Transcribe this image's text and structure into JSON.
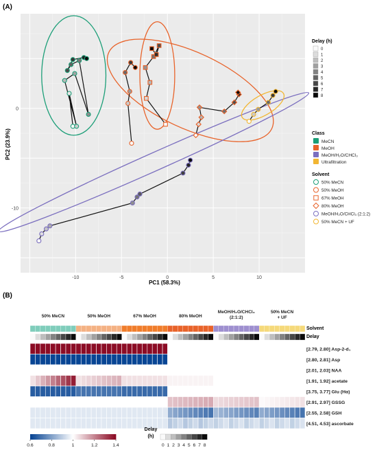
{
  "panel_a": {
    "label": "(A)",
    "x_label": "PC1 (58.3%)",
    "y_label": "PC2 (23.9%)",
    "x_ticks": [
      "-10",
      "-5",
      "0",
      "5",
      "10"
    ],
    "y_ticks": [
      "0",
      "-10"
    ],
    "legend_delay_title": "Delay (h)",
    "legend_delay_items": [
      "0",
      "1",
      "2",
      "3",
      "4",
      "5",
      "6",
      "7",
      "8"
    ],
    "legend_class_title": "Class",
    "legend_class_items": [
      "MeCN",
      "MeOH",
      "MeOH/H₂O/CHCl₃",
      "Ultrafiltration"
    ],
    "legend_solvent_title": "Solvent",
    "legend_solvent_items": [
      "50% MeCN",
      "50% MeOH",
      "67% MeOH",
      "80% MeOH",
      "MeOH/H₂O/CHCl₃ (2:1:2)",
      "50% MeCN + UF"
    ]
  },
  "panel_b": {
    "label": "(B)",
    "group_labels": [
      "50% MeCN",
      "50% MeOH",
      "67% MeOH",
      "80% MeOH",
      "MeOH/H₂O/CHCl₃\n(2:1:2)",
      "50% MeCN\n+ UF"
    ],
    "solvent_row_label": "Solvent",
    "delay_row_label": "Delay",
    "row_labels": [
      "[2.79, 2.80] Asp-2-d₁",
      "[2.80, 2.81] Asp",
      "[2.01, 2.03] NAA",
      "[1.91, 1.92] acetate",
      "[3.75, 3.77] Glu (Hα)",
      "[2.91, 2.97] GSSG",
      "[2.55, 2.58] GSH",
      "[4.51, 4.53] ascorbate"
    ],
    "colorbar_ticks": [
      "0.6",
      "0.8",
      "1",
      "1.2",
      "1.4"
    ],
    "delay_legend_title": "Delay",
    "delay_legend_unit": "(h)",
    "delay_legend_ticks": [
      "0",
      "1",
      "2",
      "3",
      "4",
      "5",
      "6",
      "7",
      "8"
    ]
  },
  "colors": {
    "MeCN": "#1b9e77",
    "MeOH": "#e8632a",
    "MeOH/H2O/CHCl3": "#7b6fbf",
    "Ultrafiltration": "#f2b632",
    "solvent_strip": [
      "#7fcdbb",
      "#f4b183",
      "#f07d2b",
      "#e8632a",
      "#9e8fcf",
      "#f5d97a"
    ]
  },
  "chart_data": [
    {
      "type": "scatter",
      "xlabel": "PC1 (58.3%)",
      "ylabel": "PC2 (23.9%)",
      "xlim": [
        -16,
        15
      ],
      "ylim": [
        -16.5,
        9.5
      ],
      "series": [
        {
          "name": "50% MeCN",
          "class": "MeCN",
          "x": [
            -10.3,
            -10.7,
            -9.9,
            -11.2,
            -10.1,
            -8.6,
            -9.6,
            -10.5,
            -10.9,
            -10.3,
            -9.1,
            -8.8
          ],
          "y": [
            -1.8,
            1.5,
            -1.8,
            2.8,
            3.5,
            -0.6,
            4.8,
            4.4,
            3.8,
            4.9,
            5.1,
            5.0
          ]
        },
        {
          "name": "50% MeOH",
          "class": "MeOH",
          "x": [
            -3.9,
            -4.3,
            -4.1,
            -4.6,
            -4.0,
            -3.5
          ],
          "y": [
            -3.5,
            0.5,
            1.7,
            3.6,
            4.6,
            4.1
          ]
        },
        {
          "name": "67% MeOH",
          "class": "MeOH",
          "x": [
            -0.2,
            -2.3,
            -1.9,
            -2.4,
            -1.5,
            -0.9,
            -1.2,
            -1.7
          ],
          "y": [
            -1.6,
            1.0,
            2.6,
            4.1,
            5.2,
            6.3,
            5.4,
            6.0
          ]
        },
        {
          "name": "80% MeOH",
          "class": "MeOH",
          "x": [
            3.1,
            3.4,
            3.7,
            3.5,
            6.2,
            7.3,
            7.8,
            7.7
          ],
          "y": [
            -2.7,
            -1.6,
            -0.9,
            0.1,
            -0.3,
            0.6,
            1.4,
            1.6
          ]
        },
        {
          "name": "MeOH/H2O/CHCl3 (2:1:2)",
          "class": "MeOH/H2O/CHCl3",
          "x": [
            -14.0,
            -13.7,
            -13.2,
            -12.8,
            -3.8,
            -3.3,
            -3.0,
            1.7,
            2.3,
            2.5
          ],
          "y": [
            -13.3,
            -12.6,
            -12.1,
            -11.8,
            -9.5,
            -8.9,
            -8.6,
            -6.5,
            -5.7,
            -5.2
          ]
        },
        {
          "name": "50% MeCN + UF",
          "class": "Ultrafiltration",
          "x": [
            8.9,
            9.4,
            9.9,
            11.0,
            11.5,
            11.8
          ],
          "y": [
            -1.3,
            -0.6,
            -0.1,
            0.6,
            1.3,
            1.7
          ]
        }
      ]
    },
    {
      "type": "heatmap",
      "rows": [
        "[2.79, 2.80] Asp-2-d₁",
        "[2.80, 2.81] Asp",
        "[2.01, 2.03] NAA",
        "[1.91, 1.92] acetate",
        "[3.75, 3.77] Glu (Hα)",
        "[2.91, 2.97] GSSG",
        "[2.55, 2.58] GSH",
        "[4.51, 4.53] ascorbate"
      ],
      "groups": [
        "50% MeCN",
        "50% MeOH",
        "67% MeOH",
        "80% MeOH",
        "MeOH/H2O/CHCl3 (2:1:2)",
        "50% MeCN + UF"
      ],
      "delays_per_group": [
        0,
        1,
        2,
        3,
        4,
        5,
        6,
        7,
        8
      ],
      "color_scale": {
        "min": 0.6,
        "mid": 1.0,
        "max": 1.4
      },
      "row_group_means": [
        [
          1.4,
          1.4,
          1.4,
          1.0,
          1.0,
          1.0
        ],
        [
          0.6,
          0.6,
          0.6,
          1.0,
          1.0,
          1.0
        ],
        [
          1.0,
          1.0,
          1.0,
          1.0,
          1.0,
          1.0
        ],
        [
          1.25,
          1.1,
          1.05,
          1.02,
          1.0,
          1.0
        ],
        [
          0.65,
          0.7,
          0.68,
          1.0,
          1.0,
          1.0
        ],
        [
          1.0,
          1.0,
          1.0,
          1.12,
          1.08,
          1.03
        ],
        [
          0.95,
          0.95,
          0.95,
          0.82,
          0.85,
          0.82
        ],
        [
          0.95,
          0.95,
          0.95,
          0.9,
          0.92,
          0.92
        ]
      ]
    }
  ]
}
